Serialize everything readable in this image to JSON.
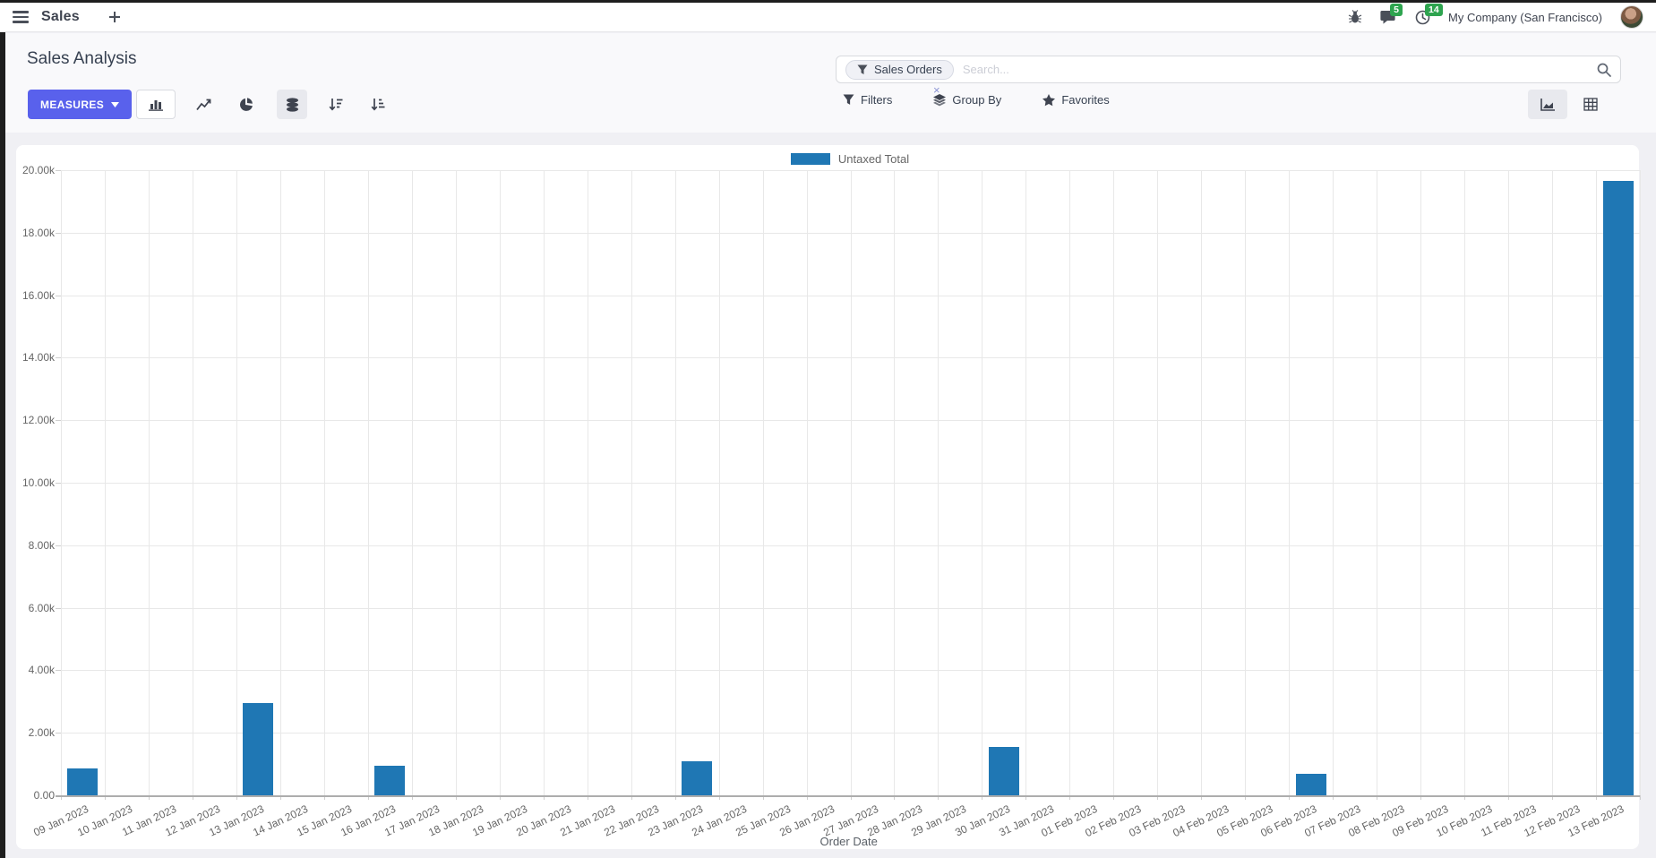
{
  "navbar": {
    "app_label": "Sales",
    "messages_badge": "5",
    "activities_badge": "14",
    "company": "My Company (San Francisco)"
  },
  "control_panel": {
    "title": "Sales Analysis",
    "measures_label": "MEASURES",
    "search": {
      "facet": "Sales Orders",
      "remove_facet": "×",
      "placeholder": "Search..."
    },
    "filters_label": "Filters",
    "groupby_label": "Group By",
    "favorites_label": "Favorites"
  },
  "chart_data": {
    "type": "bar",
    "title": "",
    "xlabel": "Order Date",
    "ylabel": "",
    "legend": [
      "Untaxed Total"
    ],
    "legend_position": "top-center",
    "grid": true,
    "ylim": [
      0,
      20000
    ],
    "ytick_step": 2000,
    "ytick_labels": [
      "0.00",
      "2.00k",
      "4.00k",
      "6.00k",
      "8.00k",
      "10.00k",
      "12.00k",
      "14.00k",
      "16.00k",
      "18.00k",
      "20.00k"
    ],
    "categories": [
      "09 Jan 2023",
      "10 Jan 2023",
      "11 Jan 2023",
      "12 Jan 2023",
      "13 Jan 2023",
      "14 Jan 2023",
      "15 Jan 2023",
      "16 Jan 2023",
      "17 Jan 2023",
      "18 Jan 2023",
      "19 Jan 2023",
      "20 Jan 2023",
      "21 Jan 2023",
      "22 Jan 2023",
      "23 Jan 2023",
      "24 Jan 2023",
      "25 Jan 2023",
      "26 Jan 2023",
      "27 Jan 2023",
      "28 Jan 2023",
      "29 Jan 2023",
      "30 Jan 2023",
      "31 Jan 2023",
      "01 Feb 2023",
      "02 Feb 2023",
      "03 Feb 2023",
      "04 Feb 2023",
      "05 Feb 2023",
      "06 Feb 2023",
      "07 Feb 2023",
      "08 Feb 2023",
      "09 Feb 2023",
      "10 Feb 2023",
      "11 Feb 2023",
      "12 Feb 2023",
      "13 Feb 2023"
    ],
    "series": [
      {
        "name": "Untaxed Total",
        "values": [
          850,
          0,
          0,
          0,
          2950,
          0,
          0,
          950,
          0,
          0,
          0,
          0,
          0,
          0,
          1100,
          0,
          0,
          0,
          0,
          0,
          0,
          1550,
          0,
          0,
          0,
          0,
          0,
          0,
          700,
          0,
          0,
          0,
          0,
          0,
          0,
          19650
        ]
      }
    ]
  },
  "colors": {
    "accent": "#5961ec",
    "bar": "#1f77b4",
    "badge": "#2ea44f",
    "page_bg": "#f0f0f4"
  }
}
